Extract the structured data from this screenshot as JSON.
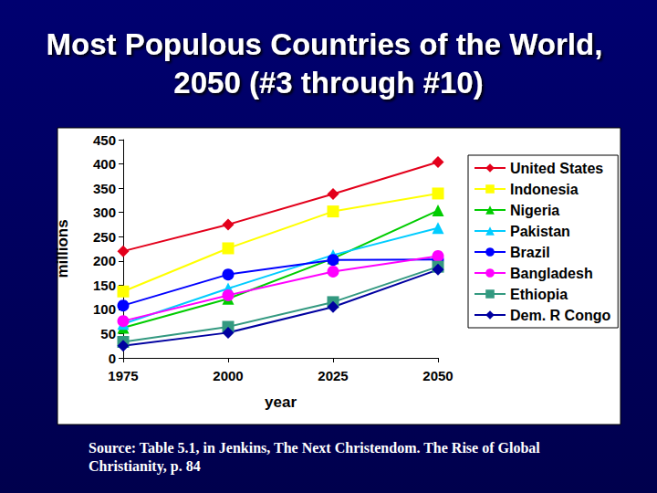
{
  "chart_data": {
    "type": "line",
    "title": "Most Populous Countries of the World, 2050 (#3 through #10)",
    "x_label": "year",
    "y_label": "millions",
    "annotations": [
      "Source: Table 5.1, in Jenkins, The Next Christendom. The Rise of Global Christianity, p. 84"
    ],
    "categories": [
      "1975",
      "2000",
      "2025",
      "2050"
    ],
    "series": [
      {
        "name": "United States",
        "color": "#e3001b",
        "marker": "diamond",
        "values": [
          220,
          275,
          338,
          404
        ]
      },
      {
        "name": "Indonesia",
        "color": "#ffff00",
        "marker": "square",
        "values": [
          137,
          226,
          302,
          339
        ]
      },
      {
        "name": "Nigeria",
        "color": "#00cc00",
        "marker": "triangle",
        "values": [
          62,
          122,
          205,
          304
        ]
      },
      {
        "name": "Pakistan",
        "color": "#00ccff",
        "marker": "triangle",
        "values": [
          70,
          143,
          212,
          268
        ]
      },
      {
        "name": "Brazil",
        "color": "#0000ff",
        "marker": "circle",
        "values": [
          108,
          172,
          202,
          203
        ]
      },
      {
        "name": "Bangladesh",
        "color": "#ff00ff",
        "marker": "circle",
        "values": [
          76,
          129,
          178,
          210
        ]
      },
      {
        "name": "Ethiopia",
        "color": "#339980",
        "marker": "square",
        "values": [
          33,
          64,
          115,
          188
        ]
      },
      {
        "name": "Dem. R Congo",
        "color": "#0000a0",
        "marker": "diamond",
        "values": [
          25,
          52,
          105,
          182
        ]
      }
    ],
    "ylim": [
      0,
      450
    ],
    "yticks": [
      0,
      50,
      100,
      150,
      200,
      250,
      300,
      350,
      400,
      450
    ],
    "grid": false,
    "legend": "right"
  }
}
